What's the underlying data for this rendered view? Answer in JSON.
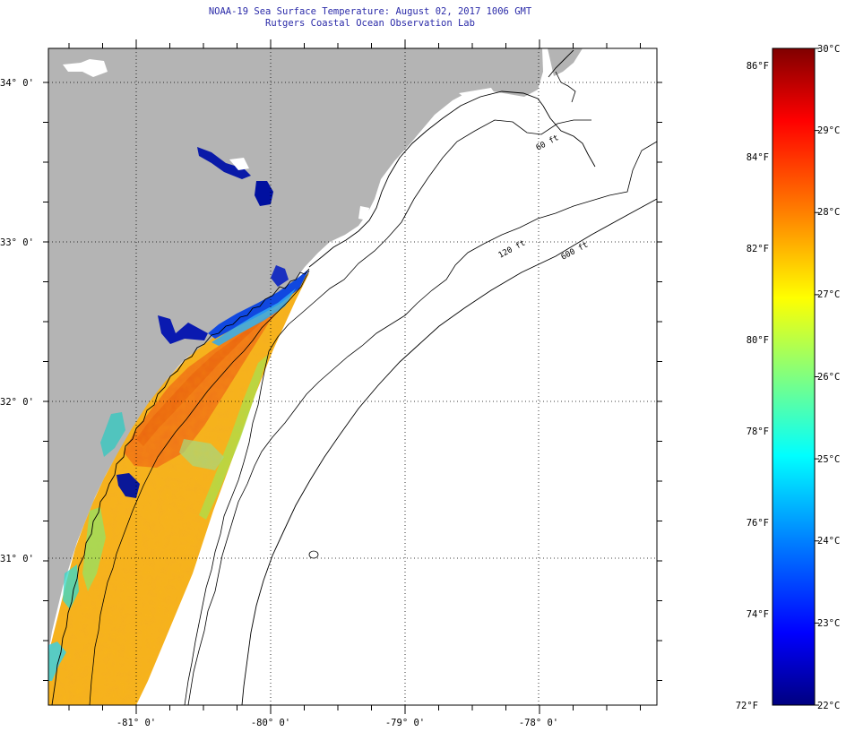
{
  "header": {
    "title": "NOAA-19 Sea Surface Temperature:  August 02, 2017 1006 GMT",
    "subtitle": "Rutgers Coastal Ocean Observation Lab"
  },
  "map": {
    "lat_labels": [
      "34° 0'",
      "33° 0'",
      "32° 0'",
      "31° 0'"
    ],
    "lon_labels": [
      "-81° 0'",
      "-80° 0'",
      "-79° 0'",
      "-78° 0'"
    ],
    "isobath_labels": [
      "120 ft",
      "600 ft",
      "60 ft"
    ],
    "colors": {
      "land": "#b4b4b4",
      "water_background": "#ffffff",
      "coastline": "#000000"
    }
  },
  "colorbar": {
    "min_c": 22,
    "max_c": 30,
    "celsius_labels": [
      "30°C",
      "29°C",
      "28°C",
      "27°C",
      "26°C",
      "25°C",
      "24°C",
      "23°C",
      "22°C"
    ],
    "fahrenheit_labels": [
      "86°F",
      "84°F",
      "82°F",
      "80°F",
      "78°F",
      "76°F",
      "74°F",
      "72°F"
    ],
    "colors": [
      "#000080",
      "#0000ff",
      "#0080ff",
      "#00ffff",
      "#80ff80",
      "#ffff00",
      "#ff8000",
      "#ff0000",
      "#800000"
    ]
  }
}
